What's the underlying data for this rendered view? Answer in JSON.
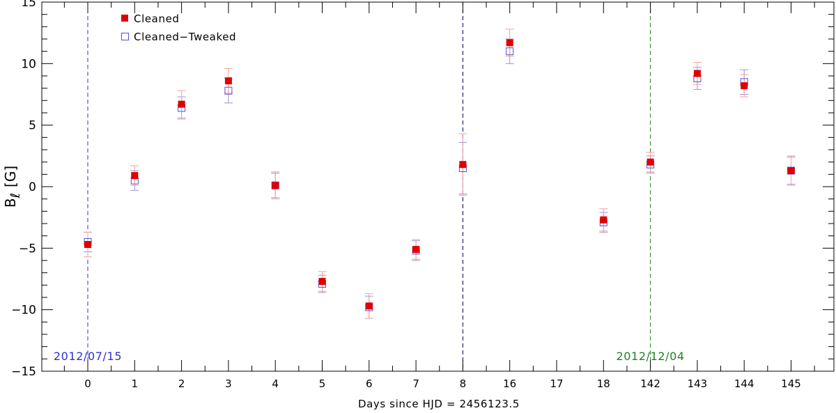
{
  "chart_data": {
    "type": "scatter",
    "xlabel": "Days since HJD = 2456123.5",
    "ylabel_main": "B",
    "ylabel_sub": "ℓ",
    "ylabel_unit": "[G]",
    "categories": [
      "0",
      "1",
      "2",
      "3",
      "4",
      "5",
      "6",
      "7",
      "8",
      "16",
      "17",
      "18",
      "142",
      "143",
      "144",
      "145"
    ],
    "ylim": [
      -15,
      15
    ],
    "yticks": [
      -15,
      -10,
      -5,
      0,
      5,
      10,
      15
    ],
    "grid": false,
    "legend_position": "top-left",
    "series": [
      {
        "name": "Cleaned",
        "marker": "filled-square",
        "color": "#e00000",
        "errorbar_color": "#f0a0a0",
        "points": [
          {
            "x": "0",
            "y": -4.7,
            "err": 1.0
          },
          {
            "x": "1",
            "y": 0.9,
            "err": 0.8
          },
          {
            "x": "2",
            "y": 6.7,
            "err": 1.1
          },
          {
            "x": "3",
            "y": 8.6,
            "err": 1.0
          },
          {
            "x": "4",
            "y": 0.1,
            "err": 1.1
          },
          {
            "x": "5",
            "y": -7.7,
            "err": 0.8
          },
          {
            "x": "6",
            "y": -9.7,
            "err": 1.0
          },
          {
            "x": "7",
            "y": -5.1,
            "err": 0.8
          },
          {
            "x": "8",
            "y": 1.8,
            "err": 2.5
          },
          {
            "x": "16",
            "y": 11.7,
            "err": 1.1
          },
          {
            "x": "18",
            "y": -2.7,
            "err": 0.9
          },
          {
            "x": "142",
            "y": 2.0,
            "err": 0.8
          },
          {
            "x": "143",
            "y": 9.2,
            "err": 0.9
          },
          {
            "x": "144",
            "y": 8.2,
            "err": 0.9
          },
          {
            "x": "145",
            "y": 1.3,
            "err": 1.2
          }
        ]
      },
      {
        "name": "Cleaned−Tweaked",
        "marker": "open-square",
        "color": "#5050d0",
        "errorbar_color": "#a090d8",
        "points": [
          {
            "x": "0",
            "y": -4.5,
            "err": 0.8
          },
          {
            "x": "1",
            "y": 0.5,
            "err": 0.8
          },
          {
            "x": "2",
            "y": 6.4,
            "err": 0.9
          },
          {
            "x": "3",
            "y": 7.8,
            "err": 1.0
          },
          {
            "x": "4",
            "y": 0.1,
            "err": 1.0
          },
          {
            "x": "5",
            "y": -7.9,
            "err": 0.7
          },
          {
            "x": "6",
            "y": -9.8,
            "err": 0.9
          },
          {
            "x": "7",
            "y": -5.2,
            "err": 0.8
          },
          {
            "x": "8",
            "y": 1.5,
            "err": 2.1
          },
          {
            "x": "16",
            "y": 11.0,
            "err": 1.0
          },
          {
            "x": "18",
            "y": -2.9,
            "err": 0.8
          },
          {
            "x": "142",
            "y": 1.8,
            "err": 0.7
          },
          {
            "x": "143",
            "y": 8.8,
            "err": 0.9
          },
          {
            "x": "144",
            "y": 8.5,
            "err": 1.0
          },
          {
            "x": "145",
            "y": 1.3,
            "err": 1.1
          }
        ]
      }
    ],
    "vlines": [
      {
        "x": "0",
        "color": "#3030d0",
        "label": "2012/07/15",
        "label_color": "#3030d0"
      },
      {
        "x": "8",
        "color": "#000050",
        "label": "",
        "label_color": "#000050"
      },
      {
        "x": "142",
        "color": "#208020",
        "label": "2012/12/04",
        "label_color": "#208020"
      }
    ]
  }
}
